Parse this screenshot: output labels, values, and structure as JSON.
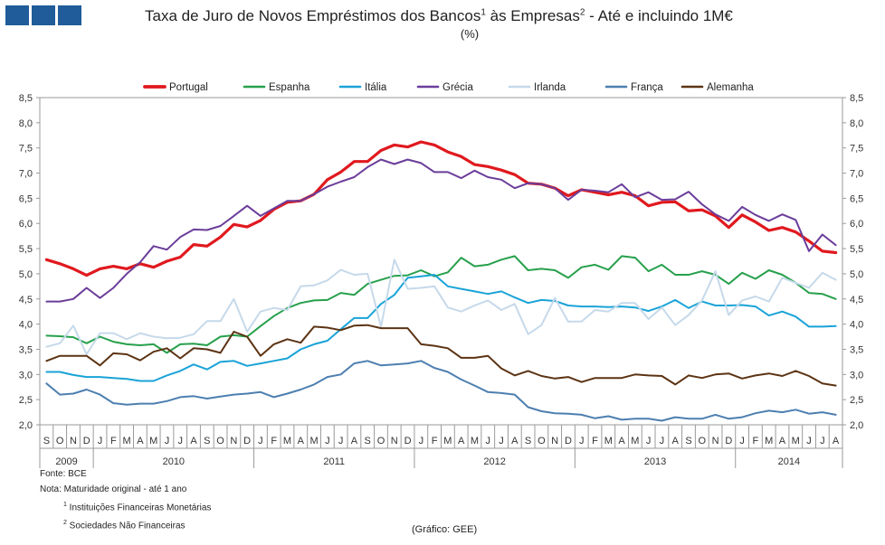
{
  "header": {
    "title_main": "Taxa de Juro de Novos Empréstimos dos Bancos",
    "title_sup1": "1",
    "title_mid": " às Empresas",
    "title_sup2": "2",
    "title_end": " - Até e incluindo 1M€",
    "subtitle": "(%)"
  },
  "notes": {
    "source": "Fonte:  BCE",
    "note": "Nota:  Maturidade original - até 1 ano",
    "fn1_num": "1",
    "fn1_text": " Instituições Financeiras Monetárias",
    "fn2_num": "2",
    "fn2_text": " Sociedades Não Financeiras"
  },
  "credit": "(Gráfico:  GEE)",
  "chart_data": {
    "type": "line",
    "title": "Taxa de Juro de Novos Empréstimos dos Bancos às Empresas - Até e incluindo 1M€",
    "ylabel": "%",
    "ylim": [
      2.0,
      8.5
    ],
    "yticks": [
      "2,0",
      "2,5",
      "3,0",
      "3,5",
      "4,0",
      "4,5",
      "5,0",
      "5,5",
      "6,0",
      "6,5",
      "7,0",
      "7,5",
      "8,0",
      "8,5"
    ],
    "grid": false,
    "legend_position": "top",
    "months": [
      "S",
      "O",
      "N",
      "D",
      "J",
      "F",
      "M",
      "A",
      "M",
      "J",
      "J",
      "A",
      "S",
      "O",
      "N",
      "D",
      "J",
      "F",
      "M",
      "A",
      "M",
      "J",
      "J",
      "A",
      "S",
      "O",
      "N",
      "D",
      "J",
      "F",
      "M",
      "A",
      "M",
      "J",
      "J",
      "A",
      "S",
      "O",
      "N",
      "D",
      "J",
      "F",
      "M",
      "A",
      "M",
      "J",
      "J",
      "A",
      "S",
      "O",
      "N",
      "D",
      "J",
      "F",
      "M",
      "A",
      "M",
      "J",
      "J",
      "A"
    ],
    "years": [
      {
        "label": "2009",
        "start": 0,
        "end": 4
      },
      {
        "label": "2010",
        "start": 4,
        "end": 16
      },
      {
        "label": "2011",
        "start": 16,
        "end": 28
      },
      {
        "label": "2012",
        "start": 28,
        "end": 40
      },
      {
        "label": "2013",
        "start": 40,
        "end": 52
      },
      {
        "label": "2014",
        "start": 52,
        "end": 60
      }
    ],
    "series": [
      {
        "name": "Portugal",
        "color": "#e0191e",
        "width": 3.2,
        "values": [
          5.28,
          5.2,
          5.1,
          4.97,
          5.1,
          5.15,
          5.1,
          5.2,
          5.13,
          5.25,
          5.33,
          5.58,
          5.55,
          5.73,
          5.98,
          5.93,
          6.06,
          6.28,
          6.42,
          6.45,
          6.58,
          6.87,
          7.02,
          7.23,
          7.23,
          7.45,
          7.56,
          7.52,
          7.62,
          7.56,
          7.42,
          7.33,
          7.17,
          7.13,
          7.06,
          6.97,
          6.8,
          6.78,
          6.7,
          6.55,
          6.67,
          6.62,
          6.57,
          6.62,
          6.55,
          6.35,
          6.42,
          6.43,
          6.25,
          6.27,
          6.15,
          5.92,
          6.17,
          6.03,
          5.86,
          5.92,
          5.83,
          5.65,
          5.45,
          5.42
        ]
      },
      {
        "name": "Espanha",
        "color": "#27a04c",
        "width": 2.0,
        "values": [
          3.77,
          3.76,
          3.74,
          3.62,
          3.75,
          3.65,
          3.6,
          3.58,
          3.6,
          3.43,
          3.6,
          3.61,
          3.58,
          3.75,
          3.78,
          3.75,
          3.96,
          4.16,
          4.32,
          4.42,
          4.47,
          4.48,
          4.62,
          4.58,
          4.8,
          4.88,
          4.96,
          4.97,
          5.07,
          4.95,
          5.03,
          5.32,
          5.15,
          5.18,
          5.28,
          5.35,
          5.07,
          5.1,
          5.07,
          4.92,
          5.13,
          5.18,
          5.08,
          5.35,
          5.32,
          5.05,
          5.18,
          4.98,
          4.98,
          5.05,
          4.98,
          4.8,
          5.02,
          4.9,
          5.07,
          4.98,
          4.82,
          4.62,
          4.6,
          4.5
        ]
      },
      {
        "name": "Itália",
        "color": "#1aa3d8",
        "width": 2.0,
        "values": [
          3.05,
          3.05,
          2.99,
          2.95,
          2.95,
          2.93,
          2.91,
          2.87,
          2.87,
          2.98,
          3.07,
          3.2,
          3.1,
          3.25,
          3.27,
          3.17,
          3.22,
          3.27,
          3.32,
          3.5,
          3.6,
          3.67,
          3.9,
          4.12,
          4.12,
          4.4,
          4.58,
          4.92,
          4.95,
          4.98,
          4.75,
          4.7,
          4.65,
          4.6,
          4.65,
          4.53,
          4.42,
          4.48,
          4.46,
          4.37,
          4.35,
          4.35,
          4.34,
          4.35,
          4.33,
          4.26,
          4.35,
          4.48,
          4.32,
          4.45,
          4.37,
          4.37,
          4.38,
          4.35,
          4.17,
          4.25,
          4.15,
          3.95,
          3.95,
          3.96
        ]
      },
      {
        "name": "Grécia",
        "color": "#6b3d9a",
        "width": 2.0,
        "values": [
          4.45,
          4.45,
          4.5,
          4.72,
          4.52,
          4.72,
          5.0,
          5.23,
          5.55,
          5.48,
          5.73,
          5.88,
          5.87,
          5.95,
          6.15,
          6.35,
          6.15,
          6.3,
          6.45,
          6.45,
          6.58,
          6.73,
          6.83,
          6.92,
          7.12,
          7.27,
          7.18,
          7.27,
          7.2,
          7.02,
          7.02,
          6.9,
          7.05,
          6.92,
          6.87,
          6.7,
          6.8,
          6.78,
          6.7,
          6.47,
          6.67,
          6.65,
          6.62,
          6.78,
          6.52,
          6.62,
          6.47,
          6.48,
          6.63,
          6.38,
          6.18,
          6.05,
          6.33,
          6.17,
          6.05,
          6.18,
          6.07,
          5.45,
          5.78,
          5.57
        ]
      },
      {
        "name": "Irlanda",
        "color": "#c6d9ea",
        "width": 2.0,
        "values": [
          3.55,
          3.62,
          3.97,
          3.4,
          3.82,
          3.82,
          3.7,
          3.82,
          3.75,
          3.72,
          3.73,
          3.8,
          4.06,
          4.06,
          4.5,
          3.85,
          4.25,
          4.32,
          4.28,
          4.75,
          4.77,
          4.87,
          5.08,
          4.98,
          5.0,
          3.95,
          5.28,
          4.7,
          4.72,
          4.75,
          4.33,
          4.25,
          4.37,
          4.47,
          4.28,
          4.4,
          3.8,
          3.98,
          4.52,
          4.05,
          4.05,
          4.28,
          4.25,
          4.42,
          4.42,
          4.1,
          4.33,
          3.98,
          4.18,
          4.47,
          5.05,
          4.18,
          4.47,
          4.55,
          4.45,
          4.92,
          4.82,
          4.72,
          5.02,
          4.88
        ]
      },
      {
        "name": "França",
        "color": "#4d7fb0",
        "width": 2.0,
        "values": [
          2.82,
          2.6,
          2.62,
          2.7,
          2.6,
          2.43,
          2.4,
          2.42,
          2.42,
          2.47,
          2.55,
          2.57,
          2.52,
          2.56,
          2.6,
          2.62,
          2.65,
          2.55,
          2.62,
          2.7,
          2.8,
          2.95,
          3.0,
          3.22,
          3.27,
          3.18,
          3.2,
          3.22,
          3.27,
          3.13,
          3.05,
          2.9,
          2.78,
          2.65,
          2.63,
          2.6,
          2.35,
          2.27,
          2.23,
          2.22,
          2.2,
          2.13,
          2.17,
          2.1,
          2.12,
          2.12,
          2.08,
          2.15,
          2.12,
          2.12,
          2.2,
          2.12,
          2.15,
          2.23,
          2.28,
          2.25,
          2.3,
          2.22,
          2.25,
          2.2
        ]
      },
      {
        "name": "Alemanha",
        "color": "#5c3313",
        "width": 2.0,
        "values": [
          3.27,
          3.37,
          3.37,
          3.37,
          3.18,
          3.42,
          3.4,
          3.28,
          3.45,
          3.52,
          3.32,
          3.52,
          3.5,
          3.43,
          3.85,
          3.75,
          3.37,
          3.6,
          3.7,
          3.63,
          3.95,
          3.93,
          3.88,
          3.97,
          3.98,
          3.92,
          3.92,
          3.92,
          3.6,
          3.57,
          3.52,
          3.33,
          3.33,
          3.37,
          3.12,
          2.98,
          3.07,
          2.97,
          2.92,
          2.95,
          2.85,
          2.93,
          2.93,
          2.93,
          3.0,
          2.98,
          2.97,
          2.8,
          2.98,
          2.93,
          3.0,
          3.02,
          2.92,
          2.98,
          3.02,
          2.97,
          3.07,
          2.97,
          2.82,
          2.78
        ]
      }
    ]
  }
}
